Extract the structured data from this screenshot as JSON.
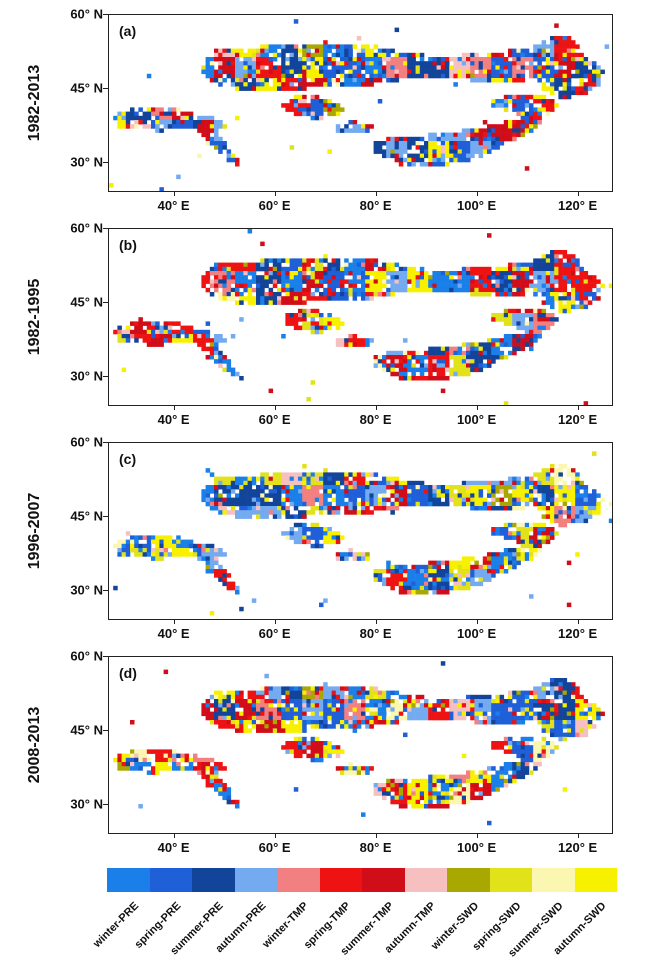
{
  "panels": [
    {
      "label": "(a)",
      "period": "1982-2013",
      "seed": 11,
      "weights": [
        2,
        4,
        5,
        3,
        1,
        2,
        3,
        1,
        0.5,
        1,
        1,
        4
      ]
    },
    {
      "label": "(b)",
      "period": "1982-1995",
      "seed": 23,
      "weights": [
        3,
        3,
        4,
        2,
        1,
        4,
        3,
        1,
        0.5,
        2,
        1,
        3
      ]
    },
    {
      "label": "(c)",
      "period": "1996-2007",
      "seed": 37,
      "weights": [
        4,
        4,
        3,
        3,
        1,
        2,
        2,
        1,
        1,
        3,
        1,
        3
      ]
    },
    {
      "label": "(d)",
      "period": "2008-2013",
      "seed": 51,
      "weights": [
        3,
        3,
        3,
        2,
        2,
        4,
        3,
        1,
        2,
        3,
        1,
        4
      ]
    }
  ],
  "axes": {
    "y_ticks": [
      "60° N",
      "45° N",
      "30° N"
    ],
    "x_ticks": [
      "40° E",
      "60° E",
      "80° E",
      "100° E",
      "120° E"
    ]
  },
  "legend": {
    "items": [
      {
        "label": "winter-PRE",
        "color": "#1a7fe8"
      },
      {
        "label": "spring-PRE",
        "color": "#1f5fd8"
      },
      {
        "label": "summer-PRE",
        "color": "#12449a"
      },
      {
        "label": "autumn-PRE",
        "color": "#74aaf0"
      },
      {
        "label": "winter-TMP",
        "color": "#f28080"
      },
      {
        "label": "spring-TMP",
        "color": "#ee1212"
      },
      {
        "label": "summer-TMP",
        "color": "#d00d18"
      },
      {
        "label": "autumn-TMP",
        "color": "#f6c0c0"
      },
      {
        "label": "winter-SWD",
        "color": "#a8a800"
      },
      {
        "label": "spring-SWD",
        "color": "#e2e21a"
      },
      {
        "label": "summer-SWD",
        "color": "#fbf7b0"
      },
      {
        "label": "autumn-SWD",
        "color": "#f7f100"
      }
    ]
  }
}
